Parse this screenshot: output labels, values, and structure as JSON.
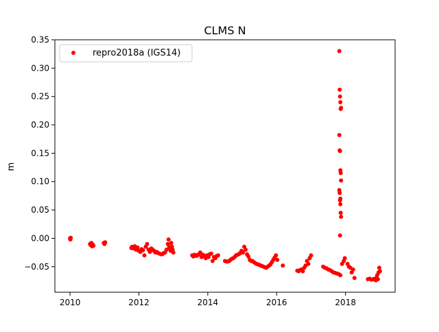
{
  "chart_data": {
    "type": "scatter",
    "title": "CLMS N",
    "xlabel": "",
    "ylabel": "m",
    "xlim": [
      2009.56,
      2019.44
    ],
    "ylim": [
      -0.095,
      0.35
    ],
    "grid": false,
    "legend_position": "top-left",
    "x_ticks": [
      2010,
      2012,
      2014,
      2016,
      2018
    ],
    "x_tick_labels": [
      "2010",
      "2012",
      "2014",
      "2016",
      "2018"
    ],
    "y_ticks": [
      -0.05,
      0.0,
      0.05,
      0.1,
      0.15,
      0.2,
      0.25,
      0.3,
      0.35
    ],
    "y_tick_labels": [
      "−0.05",
      "0.00",
      "0.05",
      "0.10",
      "0.15",
      "0.20",
      "0.25",
      "0.30",
      "0.35"
    ],
    "series": [
      {
        "name": "repro2018a (IGS14)",
        "color": "#ff0000",
        "marker": "circle",
        "x": [
          2010.0,
          2010.01,
          2010.02,
          2010.58,
          2010.6,
          2010.62,
          2010.64,
          2010.66,
          2010.68,
          2010.98,
          2011.0,
          2011.02,
          2011.78,
          2011.8,
          2011.84,
          2011.88,
          2011.92,
          2011.96,
          2012.0,
          2012.04,
          2012.08,
          2012.12,
          2012.16,
          2012.2,
          2012.24,
          2012.28,
          2012.32,
          2012.36,
          2012.4,
          2012.44,
          2012.48,
          2012.52,
          2012.56,
          2012.6,
          2012.64,
          2012.68,
          2012.72,
          2012.76,
          2012.8,
          2012.84,
          2012.86,
          2012.88,
          2012.9,
          2012.92,
          2012.94,
          2012.96,
          2012.98,
          2013.0,
          2013.55,
          2013.58,
          2013.62,
          2013.66,
          2013.7,
          2013.74,
          2013.78,
          2013.82,
          2013.86,
          2013.9,
          2013.94,
          2013.98,
          2014.02,
          2014.06,
          2014.1,
          2014.14,
          2014.18,
          2014.22,
          2014.26,
          2014.3,
          2014.5,
          2014.54,
          2014.58,
          2014.62,
          2014.66,
          2014.7,
          2014.74,
          2014.78,
          2014.82,
          2014.86,
          2014.9,
          2014.94,
          2014.98,
          2015.02,
          2015.06,
          2015.1,
          2015.14,
          2015.18,
          2015.22,
          2015.26,
          2015.3,
          2015.34,
          2015.38,
          2015.42,
          2015.46,
          2015.5,
          2015.54,
          2015.58,
          2015.62,
          2015.66,
          2015.7,
          2015.74,
          2015.78,
          2015.82,
          2015.86,
          2015.9,
          2015.94,
          2015.98,
          2016.02,
          2016.18,
          2016.6,
          2016.64,
          2016.68,
          2016.72,
          2016.76,
          2016.8,
          2016.84,
          2016.88,
          2016.92,
          2016.96,
          2017.0,
          2017.35,
          2017.4,
          2017.45,
          2017.5,
          2017.55,
          2017.6,
          2017.65,
          2017.7,
          2017.75,
          2017.8,
          2017.85,
          2017.82,
          2017.83,
          2017.84,
          2017.85,
          2017.86,
          2017.87,
          2017.82,
          2017.83,
          2017.84,
          2017.85,
          2017.86,
          2017.87,
          2017.82,
          2017.83,
          2017.84,
          2017.85,
          2017.86,
          2017.87,
          2017.84,
          2017.85,
          2017.9,
          2017.95,
          2017.98,
          2018.06,
          2018.1,
          2018.14,
          2018.18,
          2018.22,
          2018.26,
          2018.65,
          2018.7,
          2018.75,
          2018.8,
          2018.85,
          2018.88,
          2018.9,
          2018.92,
          2018.94,
          2018.96,
          2018.98,
          2019.0
        ],
        "y": [
          0.0,
          -0.002,
          0.001,
          -0.01,
          -0.012,
          -0.008,
          -0.014,
          -0.011,
          -0.013,
          -0.008,
          -0.01,
          -0.007,
          -0.017,
          -0.015,
          -0.018,
          -0.014,
          -0.02,
          -0.016,
          -0.022,
          -0.024,
          -0.019,
          -0.021,
          -0.03,
          -0.015,
          -0.01,
          -0.02,
          -0.024,
          -0.018,
          -0.02,
          -0.022,
          -0.025,
          -0.024,
          -0.026,
          -0.027,
          -0.028,
          -0.028,
          -0.026,
          -0.025,
          -0.02,
          -0.01,
          -0.002,
          -0.015,
          -0.018,
          -0.022,
          -0.008,
          -0.015,
          -0.02,
          -0.025,
          -0.03,
          -0.032,
          -0.029,
          -0.031,
          -0.03,
          -0.028,
          -0.025,
          -0.033,
          -0.029,
          -0.031,
          -0.035,
          -0.03,
          -0.033,
          -0.028,
          -0.027,
          -0.04,
          -0.033,
          -0.035,
          -0.031,
          -0.03,
          -0.04,
          -0.041,
          -0.041,
          -0.04,
          -0.038,
          -0.036,
          -0.035,
          -0.033,
          -0.03,
          -0.029,
          -0.028,
          -0.026,
          -0.022,
          -0.025,
          -0.015,
          -0.02,
          -0.028,
          -0.032,
          -0.038,
          -0.04,
          -0.04,
          -0.042,
          -0.044,
          -0.045,
          -0.046,
          -0.047,
          -0.048,
          -0.049,
          -0.05,
          -0.051,
          -0.052,
          -0.05,
          -0.048,
          -0.046,
          -0.042,
          -0.038,
          -0.034,
          -0.03,
          -0.038,
          -0.048,
          -0.057,
          -0.058,
          -0.056,
          -0.055,
          -0.058,
          -0.052,
          -0.048,
          -0.04,
          -0.045,
          -0.035,
          -0.03,
          -0.05,
          -0.052,
          -0.053,
          -0.055,
          -0.056,
          -0.058,
          -0.06,
          -0.061,
          -0.062,
          -0.063,
          -0.065,
          0.33,
          0.262,
          0.25,
          0.24,
          0.228,
          0.23,
          0.182,
          0.155,
          0.154,
          0.12,
          0.115,
          0.102,
          0.085,
          0.08,
          0.067,
          0.06,
          0.045,
          0.038,
          0.005,
          0.07,
          -0.045,
          -0.04,
          -0.035,
          -0.045,
          -0.05,
          -0.052,
          -0.06,
          -0.055,
          -0.07,
          -0.072,
          -0.071,
          -0.073,
          -0.072,
          -0.071,
          -0.074,
          -0.07,
          -0.065,
          -0.072,
          -0.06,
          -0.052,
          -0.058
        ]
      }
    ]
  }
}
